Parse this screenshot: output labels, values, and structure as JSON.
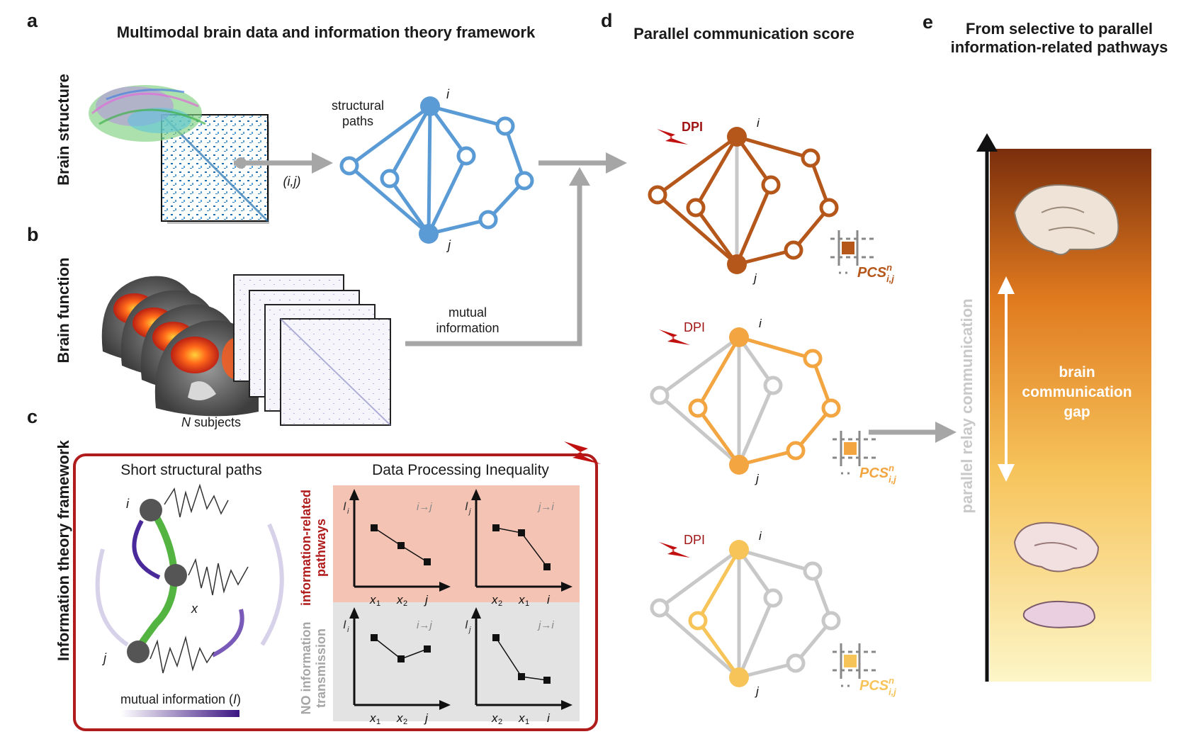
{
  "panels": {
    "a": {
      "letter": "a",
      "title": "Multimodal brain data and information theory framework"
    },
    "b": {
      "letter": "b"
    },
    "c": {
      "letter": "c"
    },
    "d": {
      "letter": "d",
      "title": "Parallel communication score"
    },
    "e": {
      "letter": "e",
      "title_line1": "From selective to parallel",
      "title_line2": "information-related pathways"
    }
  },
  "side_labels": {
    "structure": "Brain structure",
    "function": "Brain function",
    "framework": "Information theory framework"
  },
  "panel_a": {
    "structural_paths_line1": "structural",
    "structural_paths_line2": "paths",
    "ij_label": "(i,j)",
    "node_i": "i",
    "node_j": "j"
  },
  "panel_b": {
    "mutual_info_line1": "mutual",
    "mutual_info_line2": "information",
    "n_letter": "N",
    "subjects": "subjects"
  },
  "panel_c": {
    "left_title": "Short structural paths",
    "right_title": "Data Processing Inequality",
    "node_i": "i",
    "node_x": "x",
    "node_j": "j",
    "colorbar_label": "mutual information (",
    "colorbar_symbol": "I",
    "colorbar_close": ")",
    "row1_label_line1": "information-related",
    "row1_label_line2": "pathways",
    "row2_label_line1": "NO information",
    "row2_label_line2": "transmission",
    "plots": [
      {
        "ylabel": "I",
        "ysub": "i",
        "direction": "i→j",
        "x1": "x",
        "x1sub": "1",
        "x2": "x",
        "x2sub": "2",
        "xend": "j"
      },
      {
        "ylabel": "I",
        "ysub": "j",
        "direction": "j→i",
        "x1": "x",
        "x1sub": "2",
        "x2": "x",
        "x2sub": "1",
        "xend": "i"
      },
      {
        "ylabel": "I",
        "ysub": "i",
        "direction": "i→j",
        "x1": "x",
        "x1sub": "1",
        "x2": "x",
        "x2sub": "2",
        "xend": "j"
      },
      {
        "ylabel": "I",
        "ysub": "j",
        "direction": "j→i",
        "x1": "x",
        "x1sub": "2",
        "x2": "x",
        "x2sub": "1",
        "xend": "i"
      }
    ]
  },
  "panel_d": {
    "dpi": "DPI",
    "node_i": "i",
    "node_j": "j",
    "pcs": "PCS",
    "pcs_sup": "n",
    "pcs_sub": "i,j",
    "colors": [
      "#b5561a",
      "#f2a541",
      "#f7c45a"
    ]
  },
  "panel_e": {
    "axis_label": "parallel relay communication",
    "gap_line1": "brain",
    "gap_line2": "communication",
    "gap_line3": "gap"
  },
  "colors": {
    "structural_blue": "#5b9bd5",
    "frame_red": "#b01c1c",
    "dpi_red": "#b01c1c",
    "grey": "#a6a6a6",
    "plot_pink": "#f4c3b3",
    "plot_grey": "#e3e3e3"
  }
}
